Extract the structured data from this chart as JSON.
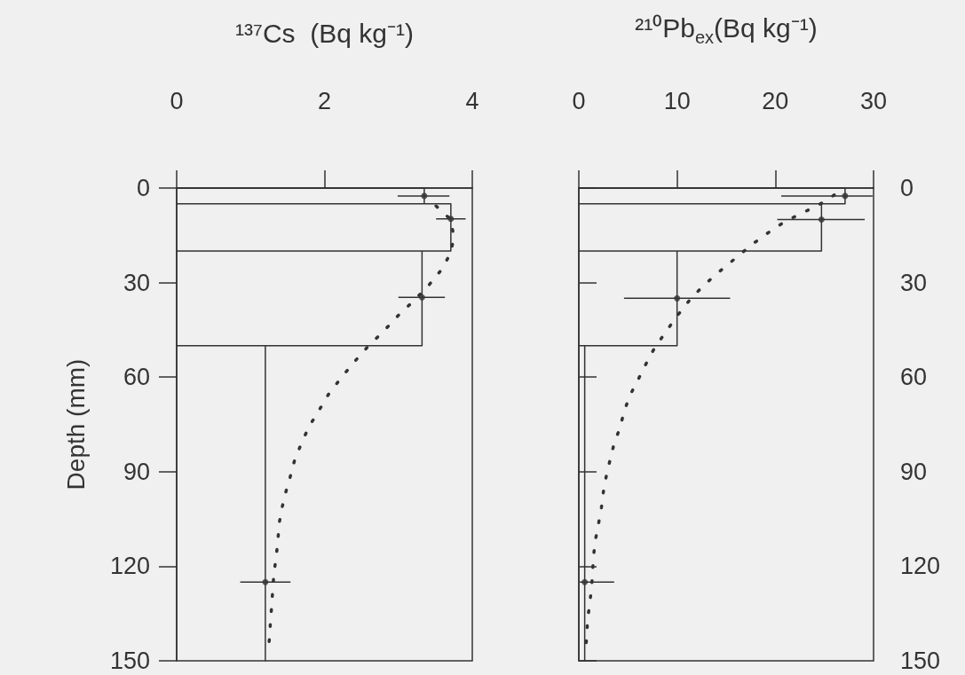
{
  "chart_data": [
    {
      "type": "line",
      "xlabel": "¹³⁷Cs  (Bq kg⁻¹)",
      "ylabel": "Depth (mm)",
      "xlim": [
        0,
        4
      ],
      "xticks": [
        0,
        2,
        4
      ],
      "ylim": [
        150,
        0
      ],
      "yticks": [
        0,
        30,
        60,
        90,
        120,
        150
      ],
      "grid": false,
      "series": [
        {
          "type": "line",
          "line_style": "solid",
          "marker": "none",
          "color": "#333333",
          "x": [
            0,
            3.35,
            3.35,
            0,
            3.71,
            3.71,
            0,
            3.32,
            3.32,
            0,
            1.2,
            1.2
          ],
          "values": [
            0,
            0,
            5,
            5,
            5,
            20,
            20,
            20,
            50,
            50,
            50,
            150
          ]
        },
        {
          "type": "scatter",
          "marker": "circle",
          "color": "#333333",
          "x": [
            3.35,
            3.71,
            3.32,
            1.2
          ],
          "values": [
            2.5,
            9.8,
            34.7,
            125
          ],
          "xerrors": [
            [
              2.99,
              3.69
            ],
            [
              3.51,
              3.91
            ],
            [
              3.0,
              3.63
            ],
            [
              0.86,
              1.54
            ]
          ]
        },
        {
          "type": "line",
          "line_style": "dotted",
          "marker": "none",
          "color": "#333333",
          "values": [
            5.7,
            10,
            15.6,
            20.5,
            25.7,
            30.6,
            35.5,
            40.4,
            45.4,
            50.5,
            55.5,
            60.7,
            65.6,
            70.8,
            75.7,
            80.9,
            86,
            91.3,
            96.2,
            101,
            106,
            111.5,
            116.4,
            121.6,
            126.8,
            131.7,
            136.9,
            141.8,
            146.7
          ],
          "x": [
            3.51,
            3.71,
            3.75,
            3.71,
            3.59,
            3.42,
            3.22,
            3.0,
            2.8,
            2.58,
            2.39,
            2.21,
            2.05,
            1.92,
            1.79,
            1.69,
            1.6,
            1.54,
            1.48,
            1.43,
            1.39,
            1.37,
            1.35,
            1.32,
            1.3,
            1.29,
            1.27,
            1.26,
            1.24
          ]
        }
      ]
    },
    {
      "type": "line",
      "xlabel": "²¹⁰Pb$_{ex}$(Bq kg⁻¹)",
      "xlim": [
        0,
        30
      ],
      "xticks": [
        0,
        10,
        20,
        30
      ],
      "y2lim": [
        150,
        0
      ],
      "y2ticks": [
        0,
        30,
        60,
        90,
        120,
        150
      ],
      "grid": false,
      "series": [
        {
          "type": "line",
          "axis": "y2",
          "line_style": "solid",
          "marker": "none",
          "color": "#333333",
          "x": [
            0,
            27.1,
            27.1,
            0,
            24.7,
            24.7,
            0,
            10.0,
            10.0,
            0,
            0.6,
            0.6
          ],
          "values": [
            0,
            0,
            5,
            5,
            5,
            20,
            20,
            20,
            50,
            50,
            50,
            150
          ]
        },
        {
          "type": "scatter",
          "axis": "y2",
          "marker": "circle",
          "color": "#333333",
          "x": [
            27.1,
            24.7,
            10.0,
            0.6
          ],
          "values": [
            2.5,
            10,
            35,
            125
          ],
          "xerrors": [
            [
              20.6,
              29.9
            ],
            [
              20.2,
              29.1
            ],
            [
              4.6,
              15.4
            ],
            [
              0.1,
              3.6
            ]
          ]
        },
        {
          "type": "line",
          "axis": "y2",
          "line_style": "dotted",
          "marker": "none",
          "color": "#333333",
          "values": [
            2.2,
            5.2,
            7.7,
            10.4,
            13.9,
            17.5,
            21.6,
            26,
            30.9,
            35.5,
            41,
            45.9,
            50.8,
            56,
            61,
            65.8,
            71,
            76,
            81,
            86,
            91.3,
            96.4,
            101.4,
            106.6,
            111.5,
            116.7,
            121.9,
            126.8,
            132,
            136.9,
            142,
            147
          ],
          "x": [
            26.0,
            24.5,
            22.9,
            21.1,
            19.4,
            17.8,
            16.2,
            14.5,
            12.7,
            11.3,
            9.9,
            8.8,
            7.7,
            6.8,
            6.0,
            5.2,
            4.6,
            4.2,
            3.6,
            3.2,
            2.8,
            2.5,
            2.3,
            2.0,
            1.7,
            1.5,
            1.4,
            1.3,
            1.1,
            0.9,
            0.8,
            0.7
          ]
        }
      ]
    }
  ]
}
